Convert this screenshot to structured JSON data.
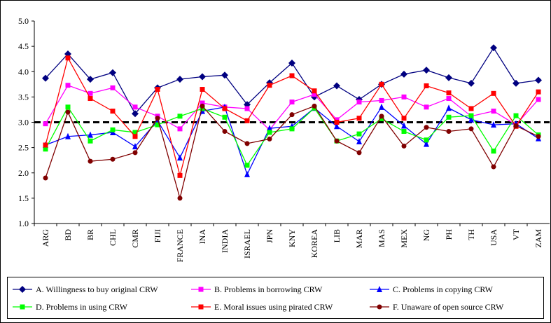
{
  "chart_data": {
    "type": "line",
    "categories": [
      "ARG",
      "BD",
      "BR",
      "CHL",
      "CMR",
      "FIJI",
      "FRANCE",
      "INA",
      "INDIA",
      "ISRAEL",
      "JPN",
      "KNY",
      "KOREA",
      "LIB",
      "MAR",
      "MAS",
      "MEX",
      "NG",
      "PH",
      "TH",
      "USA",
      "VT",
      "ZAM"
    ],
    "series": [
      {
        "name": "A. Willingness to buy original CRW",
        "color": "#000080",
        "marker": "diamond",
        "values": [
          3.87,
          4.35,
          3.85,
          3.98,
          3.17,
          3.68,
          3.85,
          3.9,
          3.93,
          3.35,
          3.78,
          4.17,
          3.5,
          3.72,
          3.45,
          3.75,
          3.95,
          4.03,
          3.88,
          3.77,
          4.47,
          3.77,
          3.83
        ]
      },
      {
        "name": "B. Problems in borrowing CRW",
        "color": "#ff00ff",
        "marker": "square",
        "values": [
          2.97,
          3.73,
          3.57,
          3.68,
          3.3,
          3.12,
          2.87,
          3.38,
          3.3,
          3.27,
          2.85,
          3.4,
          3.55,
          3.05,
          3.4,
          3.43,
          3.5,
          3.3,
          3.47,
          3.12,
          3.22,
          2.95,
          3.45
        ]
      },
      {
        "name": "C. Problems in copying CRW",
        "color": "#0000ff",
        "marker": "triangle",
        "values": [
          2.55,
          2.72,
          2.75,
          2.8,
          2.52,
          3.03,
          2.3,
          3.22,
          3.3,
          1.97,
          2.88,
          2.92,
          3.28,
          2.92,
          2.62,
          3.3,
          2.93,
          2.57,
          3.28,
          3.05,
          2.95,
          2.97,
          2.68
        ]
      },
      {
        "name": "D. Problems in using CRW",
        "color": "#00ff00",
        "marker": "square",
        "values": [
          2.47,
          3.3,
          2.63,
          2.85,
          2.8,
          2.95,
          3.12,
          3.27,
          3.1,
          2.15,
          2.8,
          2.87,
          3.28,
          2.63,
          2.77,
          3.07,
          2.82,
          2.65,
          3.1,
          3.13,
          2.43,
          3.13,
          2.75
        ]
      },
      {
        "name": "E. Moral issues using pirated CRW",
        "color": "#ff0000",
        "marker": "square",
        "values": [
          2.55,
          4.27,
          3.47,
          3.22,
          2.72,
          3.65,
          1.95,
          3.65,
          3.27,
          3.03,
          3.73,
          3.92,
          3.62,
          3.0,
          3.08,
          3.75,
          3.08,
          3.72,
          3.58,
          3.27,
          3.57,
          2.92,
          3.6
        ]
      },
      {
        "name": "F. Unaware of open source CRW",
        "color": "#800000",
        "marker": "circle",
        "values": [
          1.9,
          3.2,
          2.23,
          2.27,
          2.4,
          3.08,
          1.5,
          3.32,
          2.82,
          2.58,
          2.67,
          3.15,
          3.32,
          2.63,
          2.4,
          3.12,
          2.53,
          2.9,
          2.82,
          2.87,
          2.12,
          2.93,
          2.72
        ]
      }
    ],
    "ylim": [
      1,
      5
    ],
    "yticks": [
      {
        "value": 1,
        "label": "1.0"
      },
      {
        "value": 1.5,
        "label": "1.5"
      },
      {
        "value": 2,
        "label": "2.0"
      },
      {
        "value": 2.5,
        "label": "2.5"
      },
      {
        "value": 3,
        "label": "3.0"
      },
      {
        "value": 3.5,
        "label": "3.5"
      },
      {
        "value": 4,
        "label": "4.0"
      },
      {
        "value": 4.5,
        "label": "4.5"
      },
      {
        "value": 5,
        "label": "5.0"
      }
    ],
    "hline": 3,
    "legend": "bottom"
  }
}
